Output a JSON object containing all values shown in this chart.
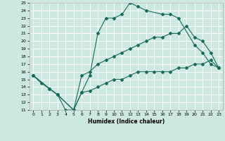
{
  "title": "",
  "xlabel": "Humidex (Indice chaleur)",
  "xlim": [
    -0.5,
    23.5
  ],
  "ylim": [
    11,
    25
  ],
  "xticks": [
    0,
    1,
    2,
    3,
    4,
    5,
    6,
    7,
    8,
    9,
    10,
    11,
    12,
    13,
    14,
    15,
    16,
    17,
    18,
    19,
    20,
    21,
    22,
    23
  ],
  "yticks": [
    11,
    12,
    13,
    14,
    15,
    16,
    17,
    18,
    19,
    20,
    21,
    22,
    23,
    24,
    25
  ],
  "bg_color": "#cce8e0",
  "grid_color": "#ffffff",
  "line_color": "#1a6b5a",
  "lines": [
    {
      "x": [
        0,
        1,
        2,
        3,
        4,
        5,
        6,
        7,
        8,
        9,
        10,
        11,
        12,
        13,
        14,
        16,
        17,
        18,
        20,
        21,
        22,
        23
      ],
      "y": [
        15.5,
        14.5,
        13.8,
        13.0,
        11.0,
        11.0,
        13.3,
        15.5,
        21.0,
        23.0,
        23.0,
        23.5,
        25.0,
        24.5,
        24.0,
        23.5,
        23.5,
        23.0,
        19.5,
        18.5,
        17.0,
        16.5
      ]
    },
    {
      "x": [
        0,
        2,
        3,
        5,
        6,
        7,
        8,
        9,
        10,
        11,
        12,
        13,
        14,
        15,
        16,
        17,
        18,
        19,
        20,
        21,
        22,
        23
      ],
      "y": [
        15.5,
        13.8,
        13.0,
        11.0,
        15.5,
        16.0,
        17.0,
        17.5,
        18.0,
        18.5,
        19.0,
        19.5,
        20.0,
        20.5,
        20.5,
        21.0,
        21.0,
        22.0,
        20.5,
        20.0,
        18.5,
        16.5
      ]
    },
    {
      "x": [
        0,
        2,
        3,
        5,
        6,
        7,
        8,
        9,
        10,
        11,
        12,
        13,
        14,
        15,
        16,
        17,
        18,
        19,
        20,
        21,
        22,
        23
      ],
      "y": [
        15.5,
        13.8,
        13.0,
        11.0,
        13.3,
        13.5,
        14.0,
        14.5,
        15.0,
        15.0,
        15.5,
        16.0,
        16.0,
        16.0,
        16.0,
        16.0,
        16.5,
        16.5,
        17.0,
        17.0,
        17.5,
        16.5
      ]
    }
  ]
}
